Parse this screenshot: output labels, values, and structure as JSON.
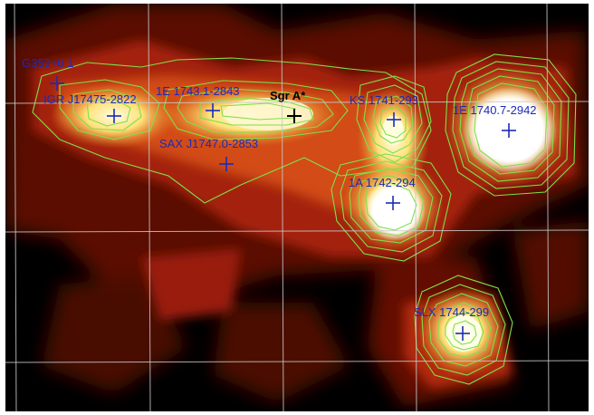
{
  "sources": [
    {
      "id": "src-g359",
      "label": "G359+0.1",
      "color": "#1c2bb8"
    },
    {
      "id": "src-igr",
      "label": "IGR J17475-2822",
      "color": "#1c2bb8"
    },
    {
      "id": "src-1e1743",
      "label": "1E 1743.1-2843",
      "color": "#1c2bb8"
    },
    {
      "id": "src-sgra",
      "label": "Sgr A*",
      "color": "#000000"
    },
    {
      "id": "src-sax",
      "label": "SAX J1747.0-2853",
      "color": "#1c2bb8"
    },
    {
      "id": "src-ks",
      "label": "KS 1741-293",
      "color": "#1c2bb8"
    },
    {
      "id": "src-1e1740",
      "label": "1E 1740.7-2942",
      "color": "#1c2bb8"
    },
    {
      "id": "src-1a",
      "label": "1A 1742-294",
      "color": "#1c2bb8"
    },
    {
      "id": "src-slx",
      "label": "SLX 1744-299",
      "color": "#1c2bb8"
    }
  ],
  "colors": {
    "background": "#000000",
    "contours": "#7ee04a",
    "grid": "#c9c9c9",
    "marker": "#1c2bb8"
  }
}
